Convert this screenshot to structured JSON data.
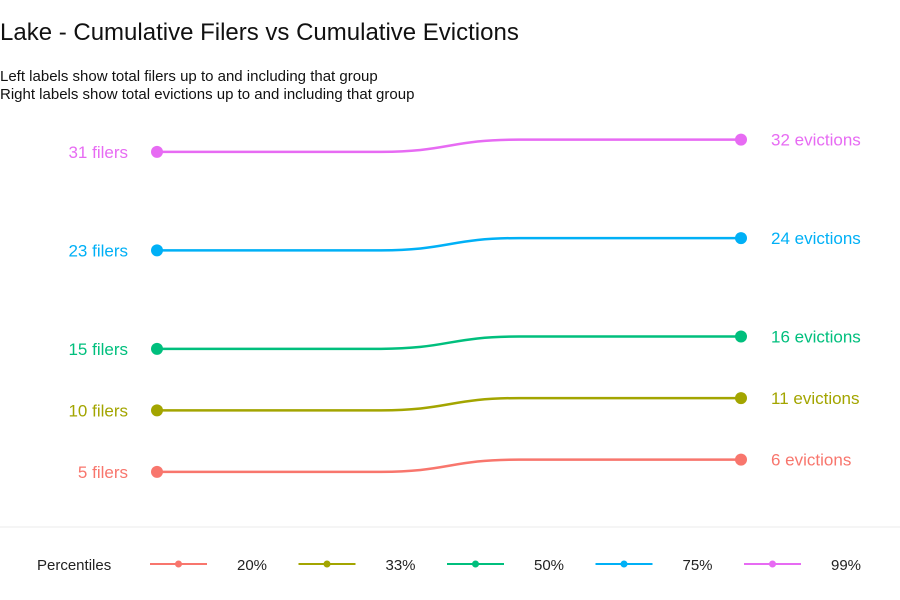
{
  "chart_data": {
    "type": "line",
    "title": "Lake - Cumulative Filers vs Cumulative Evictions",
    "subtitle_lines": [
      "Left labels show total filers up to and including that group",
      "Right labels show total evictions up to and including that group"
    ],
    "xlabel": "",
    "ylabel": "",
    "grid": false,
    "legend": {
      "title": "Percentiles",
      "position": "bottom"
    },
    "series": [
      {
        "name": "20%",
        "color": "#F8766D",
        "filers": 5,
        "evictions": 6,
        "left_label": "5 filers",
        "right_label": "6 evictions"
      },
      {
        "name": "33%",
        "color": "#A3A500",
        "filers": 10,
        "evictions": 11,
        "left_label": "10 filers",
        "right_label": "11 evictions"
      },
      {
        "name": "50%",
        "color": "#00BF7D",
        "filers": 15,
        "evictions": 16,
        "left_label": "15 filers",
        "right_label": "16 evictions"
      },
      {
        "name": "75%",
        "color": "#00B0F6",
        "filers": 23,
        "evictions": 24,
        "left_label": "23 filers",
        "right_label": "24 evictions"
      },
      {
        "name": "99%",
        "color": "#E76BF3",
        "filers": 31,
        "evictions": 32,
        "left_label": "31 filers",
        "right_label": "32 evictions"
      }
    ]
  }
}
